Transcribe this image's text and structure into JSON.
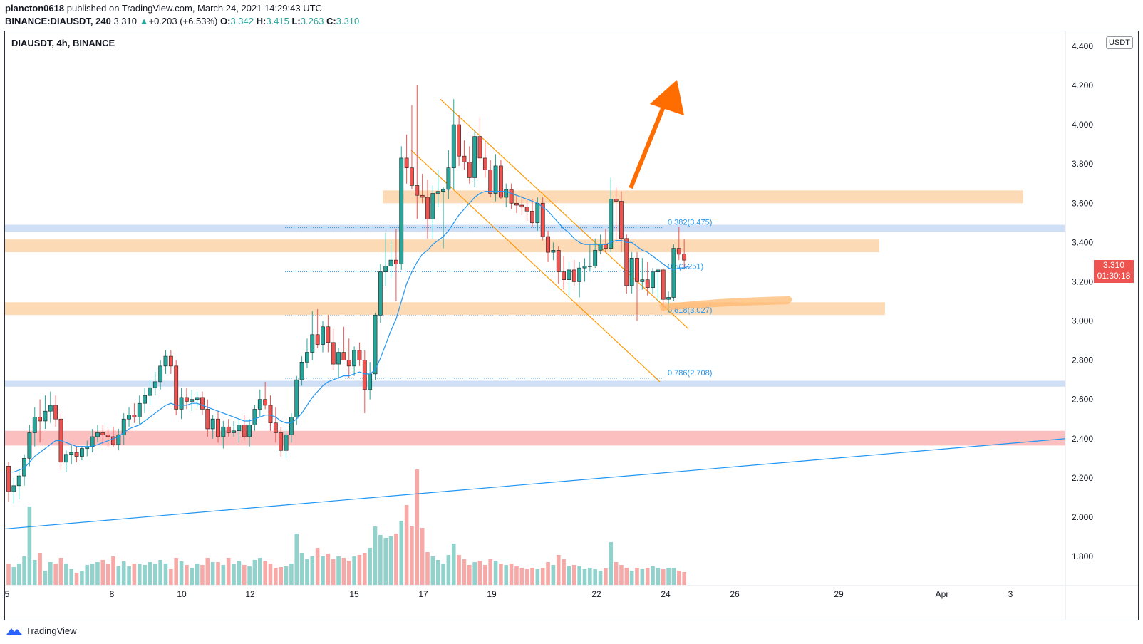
{
  "header": {
    "publisher": "plancton0618",
    "published_text": "published on TradingView.com, March 24, 2021 14:29:43 UTC"
  },
  "ohlc": {
    "symbol": "BINANCE:DIAUSDT, 240",
    "last": "3.310",
    "change": "+0.203 (+6.53%)",
    "o_label": "O:",
    "o": "3.342",
    "h_label": "H:",
    "h": "3.415",
    "l_label": "L:",
    "l": "3.263",
    "c_label": "C:",
    "c": "3.310"
  },
  "legend_title": "DIAUSDT, 4h, BINANCE",
  "currency": "USDT",
  "price_tag": {
    "price": "3.310",
    "countdown": "01:30:18"
  },
  "brand": "TradingView",
  "colors": {
    "up": "#26a69a",
    "down": "#ef5350",
    "ma": "#2196f3",
    "channel": "#ff9800",
    "arrow": "#ff6d00",
    "resistance_zone": "#fcd3a8",
    "blue_zone": "#c7d9f5",
    "red_zone": "#fab4b4"
  },
  "chart_data": {
    "type": "candlestick",
    "symbol": "DIAUSDT",
    "timeframe": "4h",
    "ylim": [
      1.7,
      4.4
    ],
    "y_ticks": [
      "4.400",
      "4.200",
      "4.000",
      "3.800",
      "3.600",
      "3.400",
      "3.200",
      "3.000",
      "2.800",
      "2.600",
      "2.400",
      "2.200",
      "2.000",
      "1.800"
    ],
    "x_ticks": [
      "5",
      "8",
      "10",
      "12",
      "15",
      "17",
      "19",
      "22",
      "24",
      "26",
      "29",
      "Apr",
      "3"
    ],
    "candles": [
      [
        2.26,
        2.28,
        2.08,
        2.13
      ],
      [
        2.13,
        2.2,
        2.07,
        2.16
      ],
      [
        2.16,
        2.24,
        2.09,
        2.21
      ],
      [
        2.21,
        2.32,
        2.16,
        2.3
      ],
      [
        2.3,
        2.47,
        2.26,
        2.43
      ],
      [
        2.43,
        2.56,
        2.36,
        2.51
      ],
      [
        2.51,
        2.6,
        2.38,
        2.49
      ],
      [
        2.49,
        2.62,
        2.45,
        2.54
      ],
      [
        2.54,
        2.64,
        2.48,
        2.57
      ],
      [
        2.57,
        2.62,
        2.46,
        2.5
      ],
      [
        2.5,
        2.53,
        2.24,
        2.28
      ],
      [
        2.28,
        2.34,
        2.23,
        2.32
      ],
      [
        2.32,
        2.37,
        2.27,
        2.33
      ],
      [
        2.33,
        2.36,
        2.28,
        2.31
      ],
      [
        2.31,
        2.36,
        2.29,
        2.35
      ],
      [
        2.35,
        2.39,
        2.31,
        2.36
      ],
      [
        2.36,
        2.45,
        2.33,
        2.41
      ],
      [
        2.41,
        2.47,
        2.38,
        2.43
      ],
      [
        2.43,
        2.47,
        2.37,
        2.42
      ],
      [
        2.42,
        2.45,
        2.36,
        2.41
      ],
      [
        2.41,
        2.46,
        2.36,
        2.37
      ],
      [
        2.37,
        2.45,
        2.34,
        2.42
      ],
      [
        2.42,
        2.53,
        2.37,
        2.5
      ],
      [
        2.5,
        2.56,
        2.46,
        2.52
      ],
      [
        2.52,
        2.58,
        2.48,
        2.51
      ],
      [
        2.51,
        2.62,
        2.47,
        2.58
      ],
      [
        2.58,
        2.66,
        2.53,
        2.62
      ],
      [
        2.62,
        2.7,
        2.57,
        2.66
      ],
      [
        2.66,
        2.74,
        2.62,
        2.69
      ],
      [
        2.69,
        2.8,
        2.65,
        2.77
      ],
      [
        2.77,
        2.85,
        2.73,
        2.82
      ],
      [
        2.82,
        2.85,
        2.73,
        2.77
      ],
      [
        2.77,
        2.8,
        2.52,
        2.55
      ],
      [
        2.55,
        2.66,
        2.5,
        2.61
      ],
      [
        2.61,
        2.66,
        2.55,
        2.59
      ],
      [
        2.59,
        2.65,
        2.54,
        2.6
      ],
      [
        2.6,
        2.64,
        2.56,
        2.61
      ],
      [
        2.61,
        2.64,
        2.52,
        2.55
      ],
      [
        2.55,
        2.6,
        2.41,
        2.45
      ],
      [
        2.45,
        2.52,
        2.4,
        2.5
      ],
      [
        2.5,
        2.54,
        2.38,
        2.41
      ],
      [
        2.41,
        2.49,
        2.35,
        2.46
      ],
      [
        2.46,
        2.5,
        2.41,
        2.43
      ],
      [
        2.43,
        2.49,
        2.41,
        2.44
      ],
      [
        2.44,
        2.5,
        2.38,
        2.47
      ],
      [
        2.47,
        2.52,
        2.39,
        2.41
      ],
      [
        2.41,
        2.5,
        2.36,
        2.47
      ],
      [
        2.47,
        2.57,
        2.44,
        2.55
      ],
      [
        2.55,
        2.65,
        2.51,
        2.6
      ],
      [
        2.6,
        2.69,
        2.55,
        2.57
      ],
      [
        2.57,
        2.62,
        2.44,
        2.48
      ],
      [
        2.48,
        2.56,
        2.38,
        2.43
      ],
      [
        2.43,
        2.46,
        2.31,
        2.34
      ],
      [
        2.34,
        2.45,
        2.3,
        2.42
      ],
      [
        2.42,
        2.53,
        2.38,
        2.51
      ],
      [
        2.51,
        2.72,
        2.47,
        2.7
      ],
      [
        2.7,
        2.82,
        2.67,
        2.79
      ],
      [
        2.79,
        2.91,
        2.76,
        2.84
      ],
      [
        2.84,
        3.05,
        2.8,
        2.93
      ],
      [
        2.93,
        3.06,
        2.86,
        2.88
      ],
      [
        2.88,
        3.0,
        2.84,
        2.97
      ],
      [
        2.97,
        3.03,
        2.84,
        2.89
      ],
      [
        2.89,
        2.96,
        2.75,
        2.78
      ],
      [
        2.78,
        2.86,
        2.71,
        2.84
      ],
      [
        2.84,
        2.97,
        2.8,
        2.8
      ],
      [
        2.8,
        2.91,
        2.71,
        2.77
      ],
      [
        2.77,
        2.87,
        2.72,
        2.85
      ],
      [
        2.85,
        2.89,
        2.77,
        2.8
      ],
      [
        2.8,
        2.85,
        2.53,
        2.65
      ],
      [
        2.65,
        2.79,
        2.6,
        2.73
      ],
      [
        2.73,
        3.04,
        2.7,
        3.03
      ],
      [
        3.03,
        3.29,
        2.99,
        3.25
      ],
      [
        3.25,
        3.45,
        3.18,
        3.28
      ],
      [
        3.28,
        3.41,
        3.22,
        3.31
      ],
      [
        3.31,
        3.47,
        3.1,
        3.29
      ],
      [
        3.29,
        3.89,
        3.26,
        3.83
      ],
      [
        3.83,
        3.95,
        3.7,
        3.78
      ],
      [
        3.78,
        4.1,
        3.67,
        3.69
      ],
      [
        3.69,
        4.2,
        3.52,
        3.64
      ],
      [
        3.64,
        3.75,
        3.6,
        3.63
      ],
      [
        3.63,
        3.72,
        3.42,
        3.52
      ],
      [
        3.52,
        3.69,
        3.42,
        3.65
      ],
      [
        3.65,
        3.77,
        3.58,
        3.66
      ],
      [
        3.66,
        3.68,
        3.37,
        3.67
      ],
      [
        3.67,
        3.87,
        3.62,
        3.78
      ],
      [
        3.78,
        4.13,
        3.67,
        4.0
      ],
      [
        4.0,
        4.05,
        3.79,
        3.84
      ],
      [
        3.84,
        3.92,
        3.77,
        3.81
      ],
      [
        3.81,
        3.89,
        3.7,
        3.73
      ],
      [
        3.73,
        3.97,
        3.68,
        3.94
      ],
      [
        3.94,
        4.04,
        3.81,
        3.83
      ],
      [
        3.83,
        3.91,
        3.73,
        3.77
      ],
      [
        3.77,
        3.82,
        3.63,
        3.65
      ],
      [
        3.65,
        3.85,
        3.61,
        3.79
      ],
      [
        3.79,
        3.82,
        3.62,
        3.63
      ],
      [
        3.63,
        3.7,
        3.58,
        3.67
      ],
      [
        3.67,
        3.7,
        3.57,
        3.6
      ],
      [
        3.6,
        3.64,
        3.55,
        3.59
      ],
      [
        3.59,
        3.64,
        3.54,
        3.58
      ],
      [
        3.58,
        3.62,
        3.51,
        3.56
      ],
      [
        3.56,
        3.62,
        3.48,
        3.5
      ],
      [
        3.5,
        3.63,
        3.46,
        3.6
      ],
      [
        3.6,
        3.63,
        3.41,
        3.43
      ],
      [
        3.43,
        3.46,
        3.3,
        3.35
      ],
      [
        3.35,
        3.4,
        3.31,
        3.36
      ],
      [
        3.36,
        3.38,
        3.19,
        3.25
      ],
      [
        3.25,
        3.33,
        3.16,
        3.21
      ],
      [
        3.21,
        3.3,
        3.12,
        3.26
      ],
      [
        3.26,
        3.31,
        3.18,
        3.2
      ],
      [
        3.2,
        3.3,
        3.12,
        3.27
      ],
      [
        3.27,
        3.32,
        3.2,
        3.28
      ],
      [
        3.28,
        3.39,
        3.25,
        3.28
      ],
      [
        3.28,
        3.42,
        3.27,
        3.36
      ],
      [
        3.36,
        3.44,
        3.34,
        3.39
      ],
      [
        3.39,
        3.47,
        3.35,
        3.37
      ],
      [
        3.37,
        3.73,
        3.35,
        3.62
      ],
      [
        3.62,
        3.68,
        3.4,
        3.61
      ],
      [
        3.61,
        3.66,
        3.35,
        3.42
      ],
      [
        3.42,
        3.44,
        3.14,
        3.18
      ],
      [
        3.18,
        3.35,
        3.14,
        3.32
      ],
      [
        3.32,
        3.35,
        3.0,
        3.2
      ],
      [
        3.2,
        3.32,
        3.16,
        3.21
      ],
      [
        3.21,
        3.3,
        3.13,
        3.17
      ],
      [
        3.17,
        3.27,
        3.14,
        3.25
      ],
      [
        3.25,
        3.27,
        3.1,
        3.26
      ],
      [
        3.26,
        3.27,
        3.05,
        3.11
      ],
      [
        3.11,
        3.15,
        3.05,
        3.12
      ],
      [
        3.12,
        3.39,
        3.1,
        3.37
      ],
      [
        3.37,
        3.48,
        3.31,
        3.34
      ],
      [
        3.342,
        3.415,
        3.263,
        3.31
      ]
    ],
    "volume": [
      30,
      25,
      30,
      40,
      110,
      35,
      45,
      20,
      32,
      30,
      38,
      30,
      22,
      17,
      20,
      28,
      30,
      32,
      35,
      30,
      40,
      26,
      33,
      26,
      30,
      30,
      28,
      32,
      30,
      35,
      30,
      22,
      38,
      33,
      28,
      24,
      30,
      28,
      38,
      32,
      32,
      28,
      38,
      30,
      34,
      28,
      26,
      35,
      38,
      33,
      30,
      24,
      25,
      26,
      30,
      72,
      45,
      36,
      40,
      52,
      40,
      44,
      36,
      40,
      38,
      34,
      40,
      42,
      45,
      52,
      82,
      70,
      66,
      68,
      72,
      90,
      112,
      82,
      162,
      80,
      46,
      40,
      35,
      30,
      42,
      58,
      42,
      36,
      28,
      32,
      34,
      28,
      36,
      34,
      30,
      28,
      30,
      26,
      24,
      22,
      24,
      22,
      24,
      32,
      28,
      42,
      36,
      26,
      28,
      26,
      22,
      24,
      22,
      20,
      23,
      60,
      32,
      28,
      24,
      20,
      24,
      22,
      24,
      26,
      24,
      22,
      24,
      24,
      20,
      18
    ],
    "ma_line": [
      2.23,
      2.23,
      2.24,
      2.25,
      2.28,
      2.31,
      2.33,
      2.35,
      2.37,
      2.39,
      2.39,
      2.38,
      2.37,
      2.36,
      2.36,
      2.36,
      2.36,
      2.37,
      2.38,
      2.39,
      2.4,
      2.41,
      2.43,
      2.45,
      2.46,
      2.47,
      2.49,
      2.51,
      2.53,
      2.55,
      2.57,
      2.58,
      2.57,
      2.57,
      2.57,
      2.58,
      2.58,
      2.57,
      2.56,
      2.55,
      2.54,
      2.53,
      2.52,
      2.51,
      2.5,
      2.49,
      2.49,
      2.5,
      2.51,
      2.52,
      2.52,
      2.51,
      2.49,
      2.48,
      2.48,
      2.5,
      2.53,
      2.57,
      2.61,
      2.64,
      2.67,
      2.69,
      2.7,
      2.71,
      2.72,
      2.72,
      2.73,
      2.74,
      2.73,
      2.73,
      2.75,
      2.81,
      2.88,
      2.95,
      3.01,
      3.1,
      3.19,
      3.25,
      3.3,
      3.34,
      3.36,
      3.39,
      3.41,
      3.43,
      3.46,
      3.5,
      3.54,
      3.57,
      3.6,
      3.63,
      3.65,
      3.66,
      3.66,
      3.66,
      3.66,
      3.66,
      3.65,
      3.64,
      3.63,
      3.62,
      3.61,
      3.6,
      3.58,
      3.56,
      3.53,
      3.5,
      3.47,
      3.45,
      3.42,
      3.4,
      3.39,
      3.39,
      3.39,
      3.39,
      3.39,
      3.4,
      3.41,
      3.41,
      3.4,
      3.4,
      3.38,
      3.36,
      3.35,
      3.33,
      3.31,
      3.29,
      3.27,
      3.26,
      3.27,
      3.27,
      3.28
    ],
    "fib_levels": [
      {
        "label": "0.382(3.475)",
        "value": 3.475
      },
      {
        "label": "0.5(3.251)",
        "value": 3.251
      },
      {
        "label": "0.618(3.027)",
        "value": 3.027
      },
      {
        "label": "0.786(2.708)",
        "value": 2.708
      }
    ],
    "zones": [
      {
        "color": "resistance",
        "from": 3.6,
        "to": 3.665
      },
      {
        "color": "blue",
        "from": 3.455,
        "to": 3.49
      },
      {
        "color": "resistance",
        "from": 3.35,
        "to": 3.415
      },
      {
        "color": "resistance",
        "from": 3.03,
        "to": 3.095
      },
      {
        "color": "blue",
        "from": 2.665,
        "to": 2.695
      },
      {
        "color": "red",
        "from": 2.365,
        "to": 2.44
      }
    ],
    "grid": false
  }
}
